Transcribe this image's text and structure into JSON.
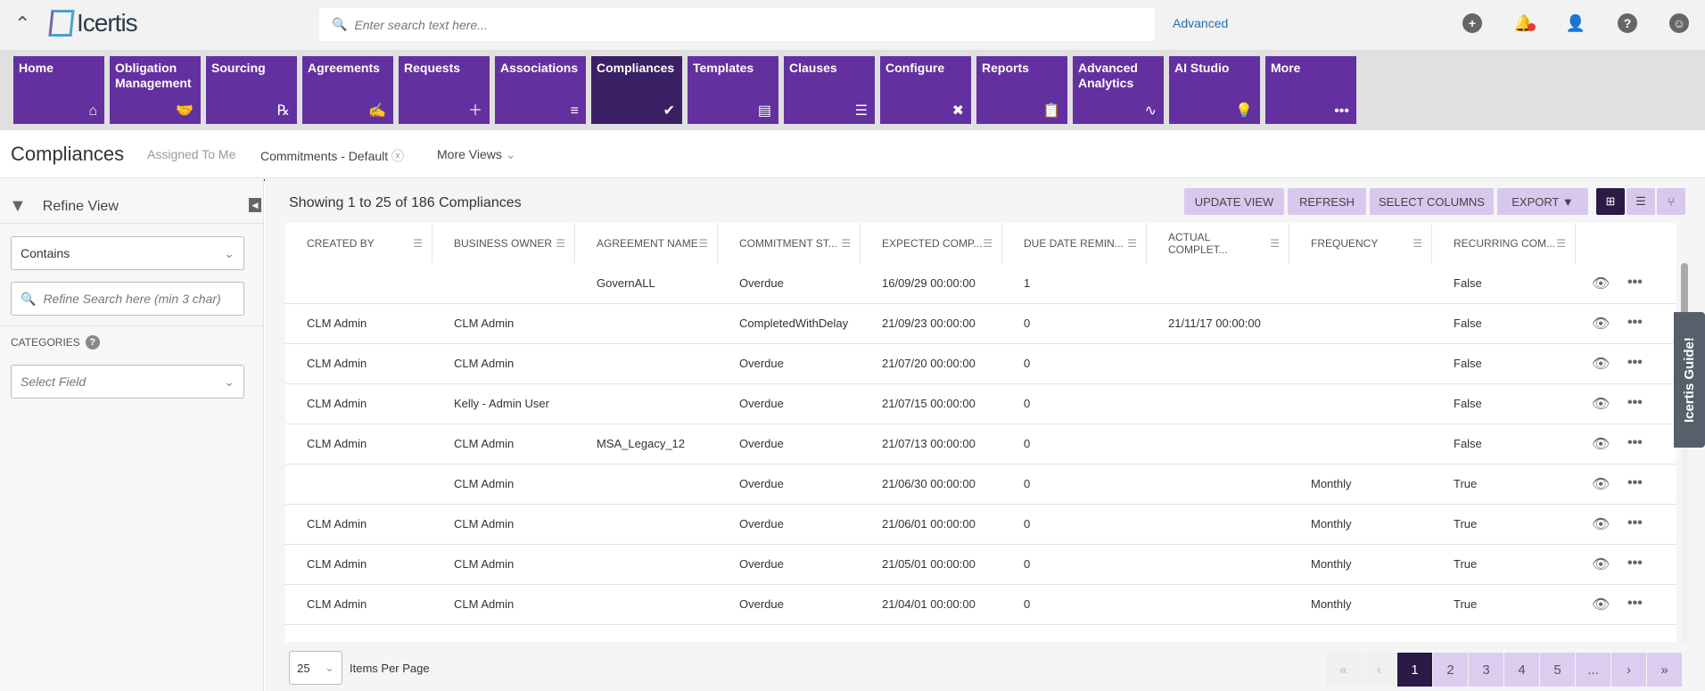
{
  "header": {
    "logo_text": "Icertis",
    "search_placeholder": "Enter search text here...",
    "advanced_link": "Advanced",
    "icons": [
      "add-icon",
      "bell-icon",
      "user-clock-icon",
      "help-icon",
      "user-icon"
    ]
  },
  "nav": {
    "items": [
      {
        "label": "Home",
        "icon": "home-icon",
        "glyph": "⌂"
      },
      {
        "label": "Obligation Management",
        "icon": "handshake-icon",
        "glyph": "🤝"
      },
      {
        "label": "Sourcing",
        "icon": "rx-document-icon",
        "glyph": "℞"
      },
      {
        "label": "Agreements",
        "icon": "signed-document-icon",
        "glyph": "✍"
      },
      {
        "label": "Requests",
        "icon": "document-plus-icon",
        "glyph": "＋"
      },
      {
        "label": "Associations",
        "icon": "document-icon",
        "glyph": "≡"
      },
      {
        "label": "Compliances",
        "icon": "double-check-icon",
        "glyph": "✔",
        "active": true
      },
      {
        "label": "Templates",
        "icon": "template-icon",
        "glyph": "▤"
      },
      {
        "label": "Clauses",
        "icon": "lines-icon",
        "glyph": "☰"
      },
      {
        "label": "Configure",
        "icon": "tools-icon",
        "glyph": "✖"
      },
      {
        "label": "Reports",
        "icon": "clipboard-icon",
        "glyph": "📋"
      },
      {
        "label": "Advanced Analytics",
        "icon": "analytics-document-icon",
        "glyph": "∿"
      },
      {
        "label": "AI Studio",
        "icon": "lightbulb-icon",
        "glyph": "💡"
      },
      {
        "label": "More",
        "icon": "more-icon",
        "glyph": "•••"
      }
    ]
  },
  "page": {
    "title": "Compliances",
    "tabs": {
      "assigned": "Assigned To Me",
      "current": "Commitments - Default",
      "more": "More Views"
    }
  },
  "refine": {
    "title": "Refine View",
    "operator": "Contains",
    "search_placeholder": "Refine Search here (min 3 char)",
    "categories_label": "CATEGORIES",
    "select_field_placeholder": "Select Field"
  },
  "toolbar": {
    "count_text": "Showing 1 to 25 of 186 Compliances",
    "update_view": "UPDATE VIEW",
    "refresh": "REFRESH",
    "select_columns": "SELECT COLUMNS",
    "export": "EXPORT ▼"
  },
  "table": {
    "columns": [
      "CREATED BY",
      "BUSINESS OWNER",
      "AGREEMENT NAME",
      "COMMITMENT ST...",
      "EXPECTED COMP...",
      "DUE DATE REMIN...",
      "ACTUAL COMPLET...",
      "FREQUENCY",
      "RECURRING COM..."
    ],
    "rows": [
      [
        "",
        "",
        "GovernALL",
        "Overdue",
        "16/09/29 00:00:00",
        "1",
        "",
        "",
        "False"
      ],
      [
        "CLM Admin",
        "CLM Admin",
        "",
        "CompletedWithDelay",
        "21/09/23 00:00:00",
        "0",
        "21/11/17 00:00:00",
        "",
        "False"
      ],
      [
        "CLM Admin",
        "CLM Admin",
        "",
        "Overdue",
        "21/07/20 00:00:00",
        "0",
        "",
        "",
        "False"
      ],
      [
        "CLM Admin",
        "Kelly - Admin User",
        "",
        "Overdue",
        "21/07/15 00:00:00",
        "0",
        "",
        "",
        "False"
      ],
      [
        "CLM Admin",
        "CLM Admin",
        "MSA_Legacy_12",
        "Overdue",
        "21/07/13 00:00:00",
        "0",
        "",
        "",
        "False"
      ],
      [
        "",
        "CLM Admin",
        "",
        "Overdue",
        "21/06/30 00:00:00",
        "0",
        "",
        "Monthly",
        "True"
      ],
      [
        "CLM Admin",
        "CLM Admin",
        "",
        "Overdue",
        "21/06/01 00:00:00",
        "0",
        "",
        "Monthly",
        "True"
      ],
      [
        "CLM Admin",
        "CLM Admin",
        "",
        "Overdue",
        "21/05/01 00:00:00",
        "0",
        "",
        "Monthly",
        "True"
      ],
      [
        "CLM Admin",
        "CLM Admin",
        "",
        "Overdue",
        "21/04/01 00:00:00",
        "0",
        "",
        "Monthly",
        "True"
      ]
    ]
  },
  "pagination": {
    "items_per_page": "25",
    "items_per_page_label": "Items Per Page",
    "pages": [
      "«",
      "‹",
      "1",
      "2",
      "3",
      "4",
      "5",
      "...",
      "›",
      "»"
    ],
    "current": "1"
  },
  "guide": {
    "label": "Icertis Guide!"
  },
  "colors": {
    "tile": "#6330a0",
    "tile_active": "#3b1f64",
    "button": "#d9c8ee"
  }
}
